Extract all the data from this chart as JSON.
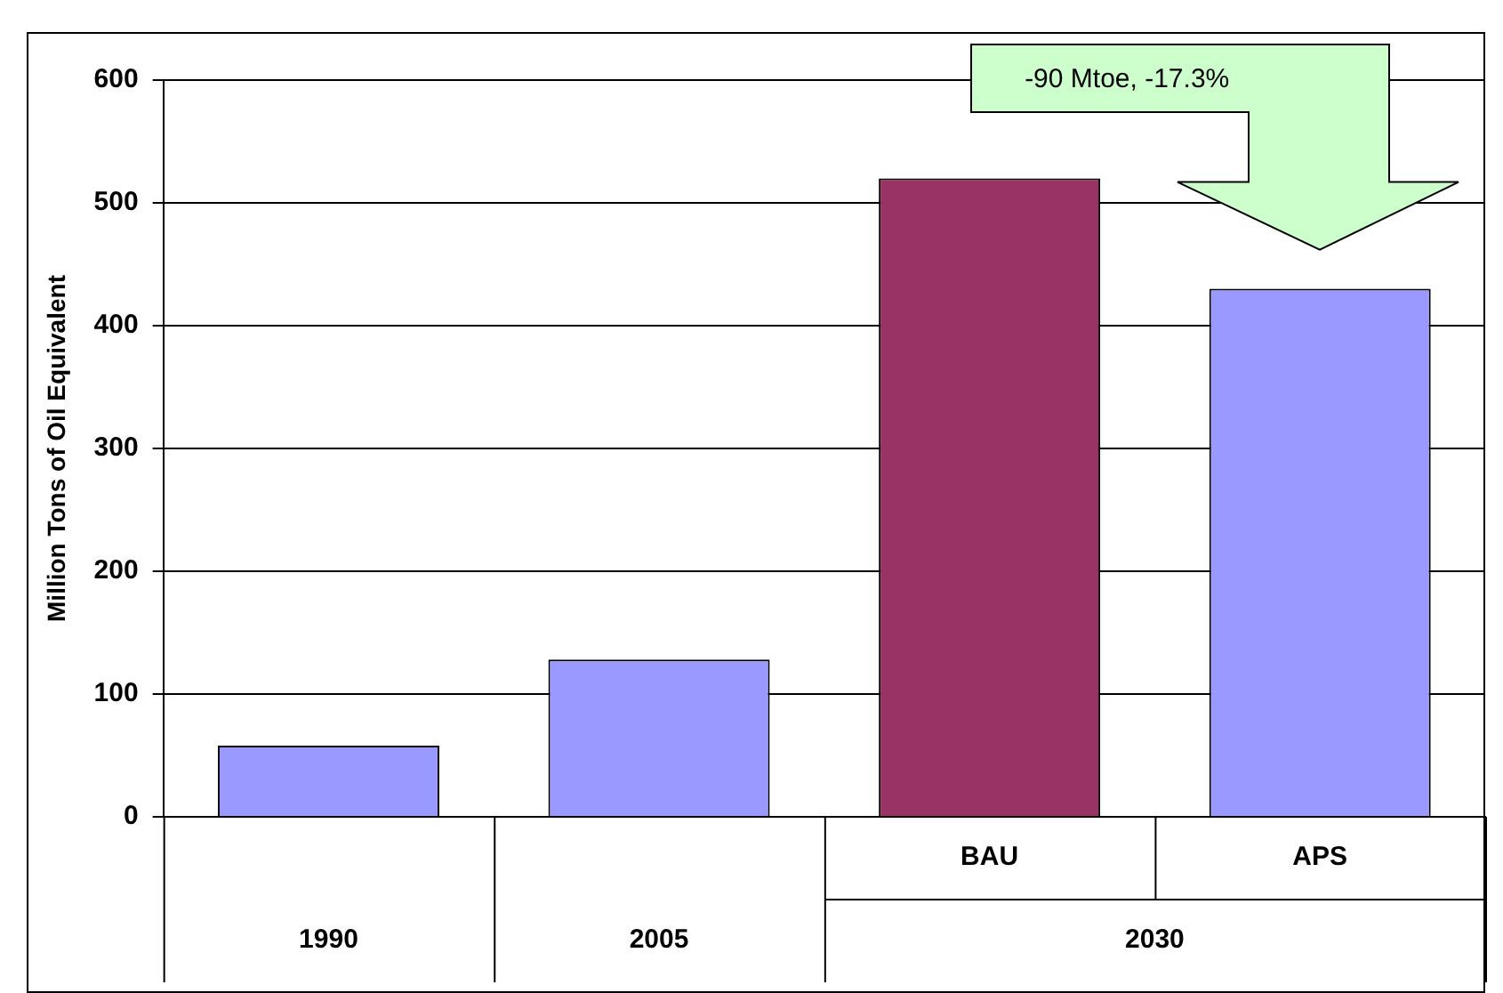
{
  "chart_data": {
    "type": "bar",
    "ylabel": "Million Tons of Oil Equivalent",
    "categories": [
      "1990",
      "2005",
      "BAU",
      "APS"
    ],
    "values": [
      58,
      128,
      520,
      430
    ],
    "colors": [
      "#9999ff",
      "#9999ff",
      "#993366",
      "#9999ff"
    ],
    "ylim": [
      0,
      600
    ],
    "yticks": [
      0,
      100,
      200,
      300,
      400,
      500,
      600
    ],
    "grid": "y",
    "annotations": [
      "2030",
      "-90 Mtoe, -17.3%"
    ]
  }
}
